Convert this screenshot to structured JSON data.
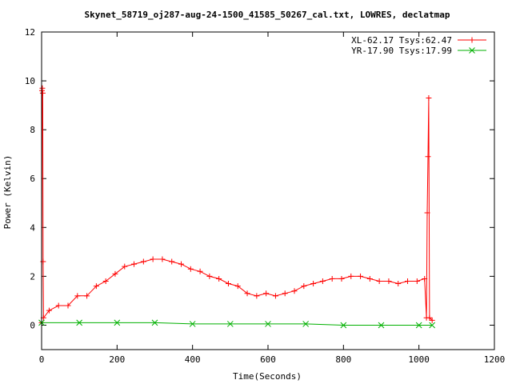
{
  "chart_data": {
    "type": "line",
    "title": "Skynet_58719_oj287-aug-24-1500_41585_50267_cal.txt, LOWRES, declatmap",
    "xlabel": "Time(Seconds)",
    "ylabel": "Power (Kelvin)",
    "xlim": [
      0,
      1200
    ],
    "ylim": [
      -1,
      12
    ],
    "xticks": [
      0,
      200,
      400,
      600,
      800,
      1000,
      1200
    ],
    "yticks": [
      0,
      2,
      4,
      6,
      8,
      10,
      12
    ],
    "grid": false,
    "legend_position": "top-right",
    "series": [
      {
        "name": "XL-62.17 Tsys:62.47",
        "color": "#ff0000",
        "marker": "plus",
        "points": [
          [
            0,
            0.1
          ],
          [
            1,
            9.6
          ],
          [
            2,
            9.7
          ],
          [
            3,
            9.5
          ],
          [
            4,
            2.6
          ],
          [
            5,
            0.3
          ],
          [
            20,
            0.6
          ],
          [
            45,
            0.8
          ],
          [
            70,
            0.8
          ],
          [
            95,
            1.2
          ],
          [
            120,
            1.2
          ],
          [
            145,
            1.6
          ],
          [
            170,
            1.8
          ],
          [
            195,
            2.1
          ],
          [
            220,
            2.4
          ],
          [
            245,
            2.5
          ],
          [
            270,
            2.6
          ],
          [
            295,
            2.7
          ],
          [
            320,
            2.7
          ],
          [
            345,
            2.6
          ],
          [
            370,
            2.5
          ],
          [
            395,
            2.3
          ],
          [
            420,
            2.2
          ],
          [
            445,
            2.0
          ],
          [
            470,
            1.9
          ],
          [
            495,
            1.7
          ],
          [
            520,
            1.6
          ],
          [
            545,
            1.3
          ],
          [
            570,
            1.2
          ],
          [
            595,
            1.3
          ],
          [
            620,
            1.2
          ],
          [
            645,
            1.3
          ],
          [
            670,
            1.4
          ],
          [
            695,
            1.6
          ],
          [
            720,
            1.7
          ],
          [
            745,
            1.8
          ],
          [
            770,
            1.9
          ],
          [
            795,
            1.9
          ],
          [
            820,
            2.0
          ],
          [
            845,
            2.0
          ],
          [
            870,
            1.9
          ],
          [
            895,
            1.8
          ],
          [
            920,
            1.8
          ],
          [
            945,
            1.7
          ],
          [
            970,
            1.8
          ],
          [
            995,
            1.8
          ],
          [
            1015,
            1.9
          ],
          [
            1020,
            0.3
          ],
          [
            1022,
            4.6
          ],
          [
            1024,
            6.9
          ],
          [
            1026,
            9.3
          ],
          [
            1028,
            0.3
          ],
          [
            1035,
            0.2
          ]
        ]
      },
      {
        "name": "YR-17.90 Tsys:17.99",
        "color": "#00b000",
        "marker": "cross",
        "points": [
          [
            0,
            0.1
          ],
          [
            100,
            0.1
          ],
          [
            200,
            0.1
          ],
          [
            300,
            0.1
          ],
          [
            400,
            0.05
          ],
          [
            500,
            0.05
          ],
          [
            600,
            0.05
          ],
          [
            700,
            0.05
          ],
          [
            800,
            0.0
          ],
          [
            900,
            0.0
          ],
          [
            1000,
            0.0
          ],
          [
            1035,
            0.0
          ]
        ]
      }
    ]
  }
}
